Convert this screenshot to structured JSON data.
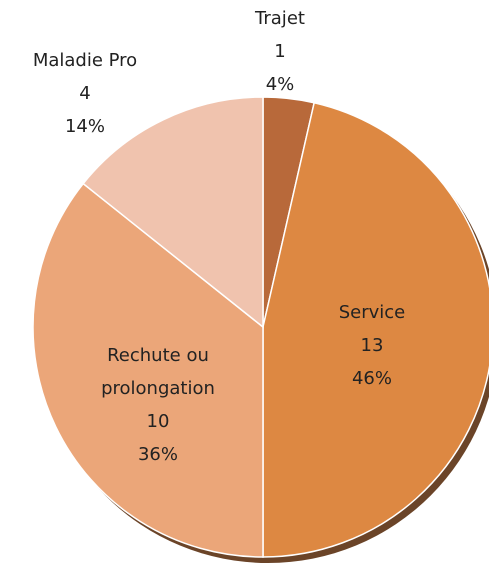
{
  "chart_data": {
    "type": "pie",
    "categories": [
      "Trajet",
      "Service",
      "Rechute ou prolongation",
      "Maladie Pro"
    ],
    "values": [
      1,
      13,
      10,
      4
    ],
    "percent_labels": [
      "4%",
      "46%",
      "36%",
      "14%"
    ],
    "colors": [
      "#b8693a",
      "#dd8842",
      "#eba679",
      "#f0c3ae"
    ]
  }
}
